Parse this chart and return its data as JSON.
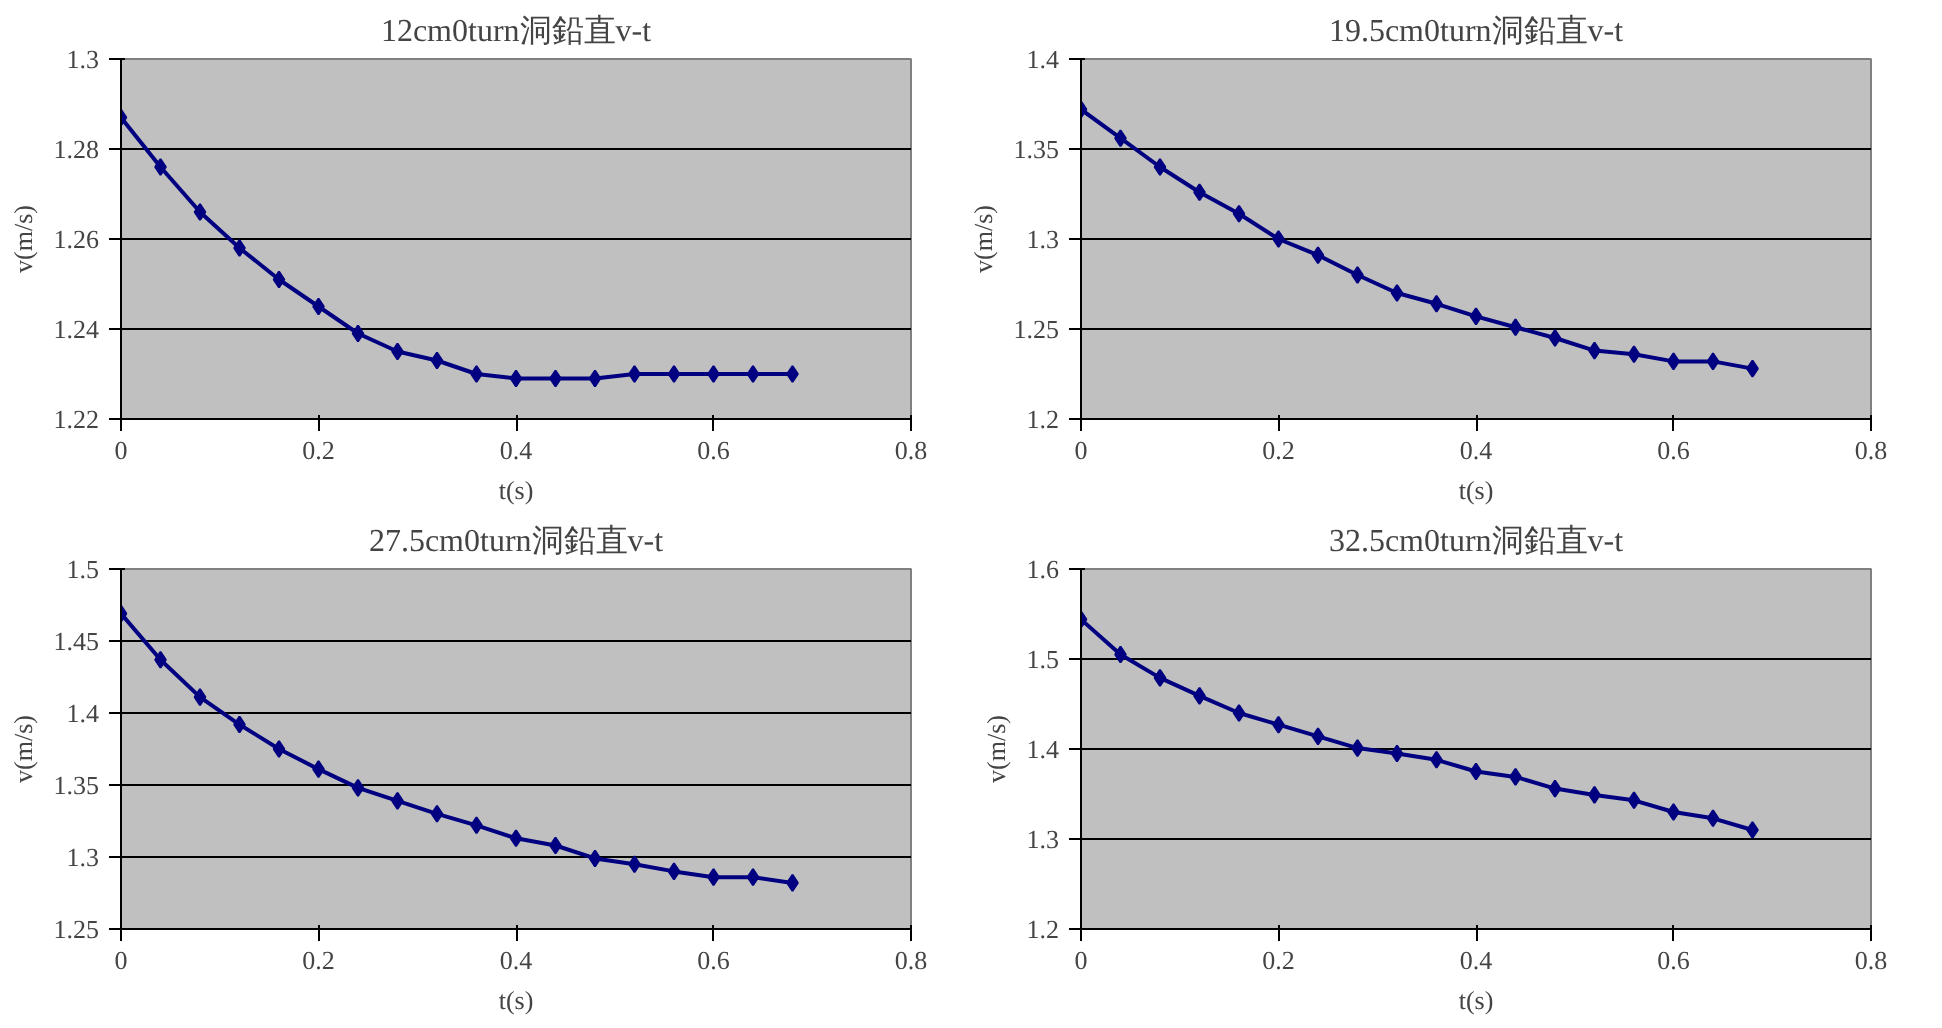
{
  "chart_data": [
    {
      "type": "line",
      "title": "12cm0turn洞鉛直v-t",
      "xlabel": "t(s)",
      "ylabel": "v(m/s)",
      "x": [
        0,
        0.04,
        0.08,
        0.12,
        0.16,
        0.2,
        0.24,
        0.28,
        0.32,
        0.36,
        0.4,
        0.44,
        0.48,
        0.52,
        0.56,
        0.6,
        0.64,
        0.68
      ],
      "series": [
        {
          "color": "#000080",
          "values": [
            1.287,
            1.276,
            1.266,
            1.258,
            1.251,
            1.245,
            1.239,
            1.235,
            1.233,
            1.23,
            1.229,
            1.229,
            1.229,
            1.23,
            1.23,
            1.23,
            1.23,
            1.23
          ]
        }
      ],
      "xlim": [
        0,
        0.8
      ],
      "xticks": [
        0,
        0.2,
        0.4,
        0.6,
        0.8
      ],
      "ylim": [
        1.22,
        1.3
      ],
      "yticks": [
        1.22,
        1.24,
        1.26,
        1.28,
        1.3
      ],
      "grid": "y",
      "marker": "diamond",
      "line_style": "solid"
    },
    {
      "type": "line",
      "title": "19.5cm0turn洞鉛直v-t",
      "xlabel": "t(s)",
      "ylabel": "v(m/s)",
      "x": [
        0,
        0.04,
        0.08,
        0.12,
        0.16,
        0.2,
        0.24,
        0.28,
        0.32,
        0.36,
        0.4,
        0.44,
        0.48,
        0.52,
        0.56,
        0.6,
        0.64,
        0.68
      ],
      "series": [
        {
          "color": "#000080",
          "values": [
            1.372,
            1.356,
            1.34,
            1.326,
            1.314,
            1.3,
            1.291,
            1.28,
            1.27,
            1.264,
            1.257,
            1.251,
            1.245,
            1.238,
            1.236,
            1.232,
            1.232,
            1.228
          ]
        }
      ],
      "xlim": [
        0,
        0.8
      ],
      "xticks": [
        0,
        0.2,
        0.4,
        0.6,
        0.8
      ],
      "ylim": [
        1.2,
        1.4
      ],
      "yticks": [
        1.2,
        1.25,
        1.3,
        1.35,
        1.4
      ],
      "grid": "y",
      "marker": "diamond",
      "line_style": "solid"
    },
    {
      "type": "line",
      "title": "27.5cm0turn洞鉛直v-t",
      "xlabel": "t(s)",
      "ylabel": "v(m/s)",
      "x": [
        0,
        0.04,
        0.08,
        0.12,
        0.16,
        0.2,
        0.24,
        0.28,
        0.32,
        0.36,
        0.4,
        0.44,
        0.48,
        0.52,
        0.56,
        0.6,
        0.64,
        0.68
      ],
      "series": [
        {
          "color": "#000080",
          "values": [
            1.469,
            1.437,
            1.411,
            1.392,
            1.375,
            1.361,
            1.348,
            1.339,
            1.33,
            1.322,
            1.313,
            1.308,
            1.299,
            1.295,
            1.29,
            1.286,
            1.286,
            1.282
          ]
        }
      ],
      "xlim": [
        0,
        0.8
      ],
      "xticks": [
        0,
        0.2,
        0.4,
        0.6,
        0.8
      ],
      "ylim": [
        1.25,
        1.5
      ],
      "yticks": [
        1.25,
        1.3,
        1.35,
        1.4,
        1.45,
        1.5
      ],
      "grid": "y",
      "marker": "diamond",
      "line_style": "solid"
    },
    {
      "type": "line",
      "title": "32.5cm0turn洞鉛直v-t",
      "xlabel": "t(s)",
      "ylabel": "v(m/s)",
      "x": [
        0,
        0.04,
        0.08,
        0.12,
        0.16,
        0.2,
        0.24,
        0.28,
        0.32,
        0.36,
        0.4,
        0.44,
        0.48,
        0.52,
        0.56,
        0.6,
        0.64,
        0.68
      ],
      "series": [
        {
          "color": "#000080",
          "values": [
            1.544,
            1.505,
            1.479,
            1.459,
            1.44,
            1.427,
            1.414,
            1.401,
            1.395,
            1.388,
            1.375,
            1.369,
            1.356,
            1.349,
            1.343,
            1.33,
            1.323,
            1.31
          ]
        }
      ],
      "xlim": [
        0,
        0.8
      ],
      "xticks": [
        0,
        0.2,
        0.4,
        0.6,
        0.8
      ],
      "ylim": [
        1.2,
        1.6
      ],
      "yticks": [
        1.2,
        1.3,
        1.4,
        1.5,
        1.6
      ],
      "grid": "y",
      "marker": "diamond",
      "line_style": "solid"
    }
  ]
}
